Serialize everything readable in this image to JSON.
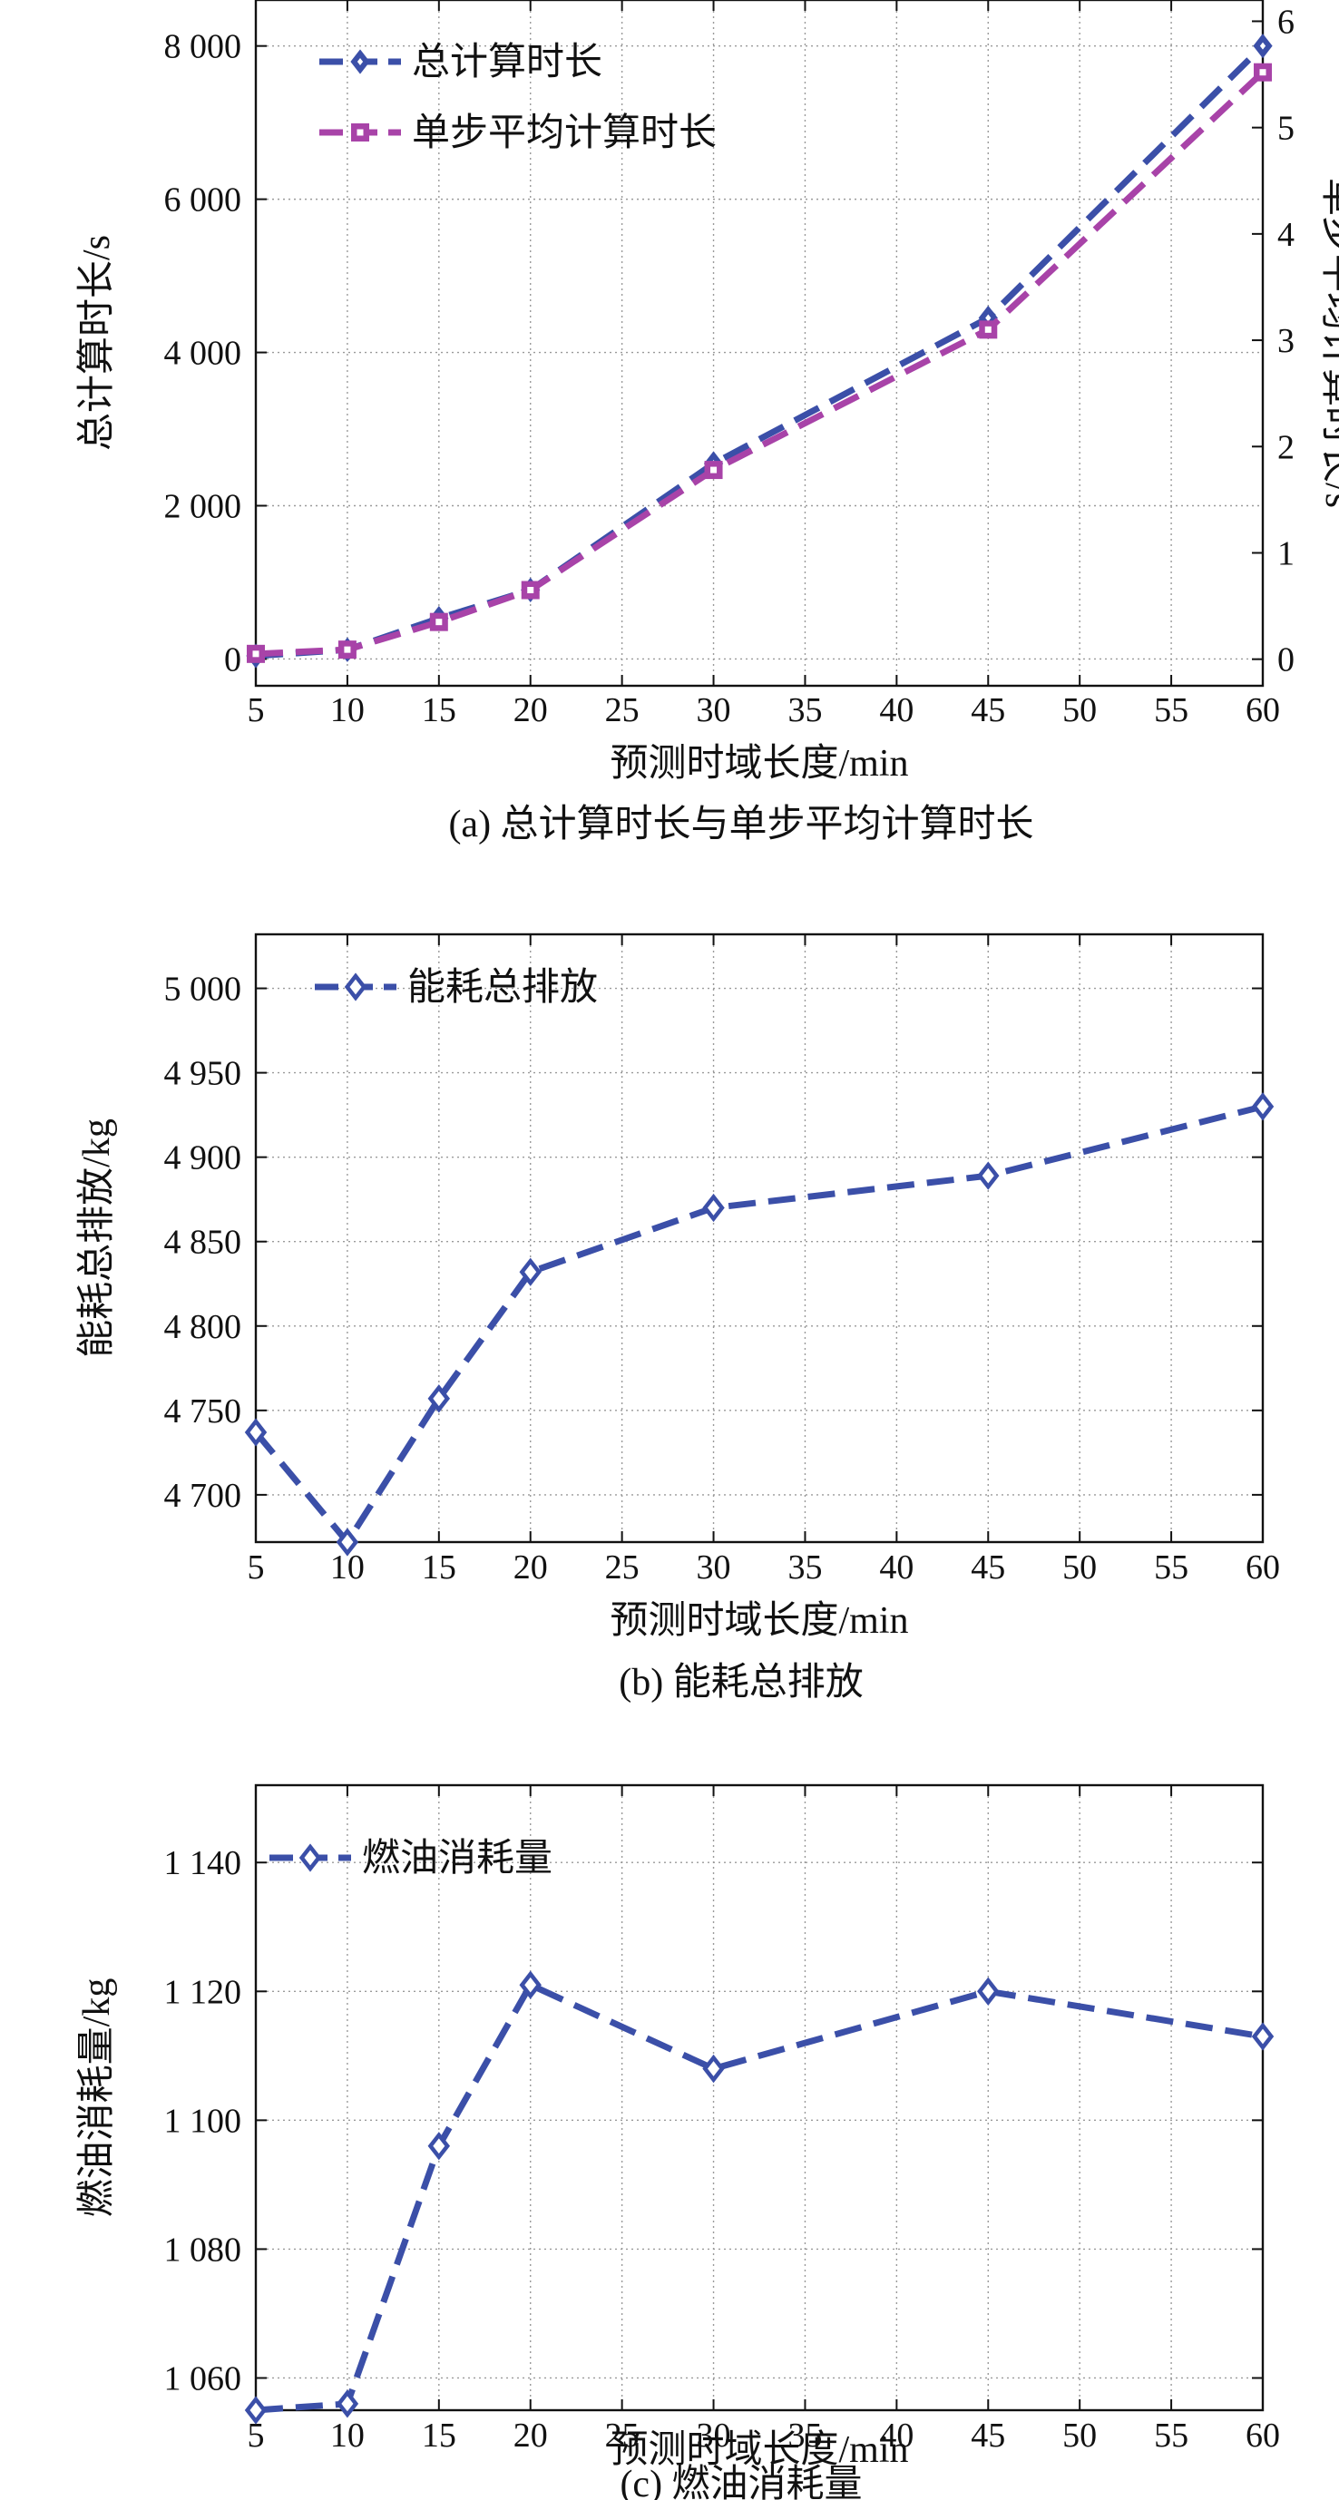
{
  "colors": {
    "blue": "#3B4FA8",
    "magenta": "#A843A8"
  },
  "chart_data": [
    {
      "type": "line",
      "caption": "(a) 总计算时长与单步平均计算时长",
      "xlabel": "预测时域长度/min",
      "ylabel": "总计算时长/s",
      "y2label": "单步平均计算时长/s",
      "xlim": [
        5,
        60
      ],
      "ylim": [
        -350,
        8600
      ],
      "y2lim": [
        -0.25,
        6.2
      ],
      "x_ticks": [
        5,
        10,
        15,
        20,
        25,
        30,
        35,
        40,
        45,
        50,
        55,
        60
      ],
      "x_tick_labels": [
        "5",
        "10",
        "15",
        "20",
        "25",
        "30",
        "35",
        "40",
        "45",
        "50",
        "55",
        "60"
      ],
      "y_ticks": [
        0,
        2000,
        4000,
        6000,
        8000
      ],
      "y_tick_labels": [
        "0",
        "2 000",
        "4 000",
        "6 000",
        "8 000"
      ],
      "y2_ticks": [
        0,
        1,
        2,
        3,
        4,
        5,
        6
      ],
      "y2_tick_labels": [
        "0",
        "1",
        "2",
        "3",
        "4",
        "5",
        "6"
      ],
      "grid": true,
      "legend_position": "top-left",
      "series": [
        {
          "name": "总计算时长",
          "axis": "left",
          "color": "#3B4FA8",
          "marker": "diamond",
          "x": [
            5,
            10,
            15,
            20,
            30,
            45,
            60
          ],
          "y": [
            40,
            120,
            530,
            900,
            2550,
            4450,
            8000
          ]
        },
        {
          "name": "单步平均计算时长",
          "axis": "right",
          "color": "#A843A8",
          "marker": "square",
          "x": [
            5,
            10,
            15,
            20,
            30,
            45,
            60
          ],
          "y": [
            0.05,
            0.09,
            0.35,
            0.65,
            1.78,
            3.1,
            5.52
          ]
        }
      ]
    },
    {
      "type": "line",
      "caption": "(b) 能耗总排放",
      "xlabel": "预测时域长度/min",
      "ylabel": "能耗总排放/kg",
      "xlim": [
        5,
        60
      ],
      "ylim": [
        4672,
        5032
      ],
      "x_ticks": [
        5,
        10,
        15,
        20,
        25,
        30,
        35,
        40,
        45,
        50,
        55,
        60
      ],
      "x_tick_labels": [
        "5",
        "10",
        "15",
        "20",
        "25",
        "30",
        "35",
        "40",
        "45",
        "50",
        "55",
        "60"
      ],
      "y_ticks": [
        4700,
        4750,
        4800,
        4850,
        4900,
        4950,
        5000
      ],
      "y_tick_labels": [
        "4 700",
        "4 750",
        "4 800",
        "4 850",
        "4 900",
        "4 950",
        "5 000"
      ],
      "grid": true,
      "legend_position": "top-left",
      "series": [
        {
          "name": "能耗总排放",
          "color": "#3B4FA8",
          "marker": "diamond-open",
          "x": [
            5,
            10,
            15,
            20,
            30,
            45,
            60
          ],
          "y": [
            4737,
            4672,
            4757,
            4832,
            4870,
            4889,
            4930
          ]
        }
      ]
    },
    {
      "type": "line",
      "caption": "(c) 燃油消耗量",
      "xlabel": "预测时域长度/min",
      "ylabel": "燃油消耗量/kg",
      "xlim": [
        5,
        60
      ],
      "ylim": [
        1055,
        1152
      ],
      "x_ticks": [
        5,
        10,
        15,
        20,
        25,
        30,
        35,
        40,
        45,
        50,
        55,
        60
      ],
      "x_tick_labels": [
        "5",
        "10",
        "15",
        "20",
        "25",
        "30",
        "35",
        "40",
        "45",
        "50",
        "55",
        "60"
      ],
      "y_ticks": [
        1060,
        1080,
        1100,
        1120,
        1140
      ],
      "y_tick_labels": [
        "1 060",
        "1 080",
        "1 100",
        "1 120",
        "1 140"
      ],
      "grid": true,
      "legend_position": "top-left",
      "series": [
        {
          "name": "燃油消耗量",
          "color": "#3B4FA8",
          "marker": "diamond-open",
          "x": [
            5,
            10,
            15,
            20,
            30,
            45,
            60
          ],
          "y": [
            1055,
            1056,
            1096,
            1121,
            1108,
            1120,
            1113
          ]
        }
      ]
    }
  ]
}
